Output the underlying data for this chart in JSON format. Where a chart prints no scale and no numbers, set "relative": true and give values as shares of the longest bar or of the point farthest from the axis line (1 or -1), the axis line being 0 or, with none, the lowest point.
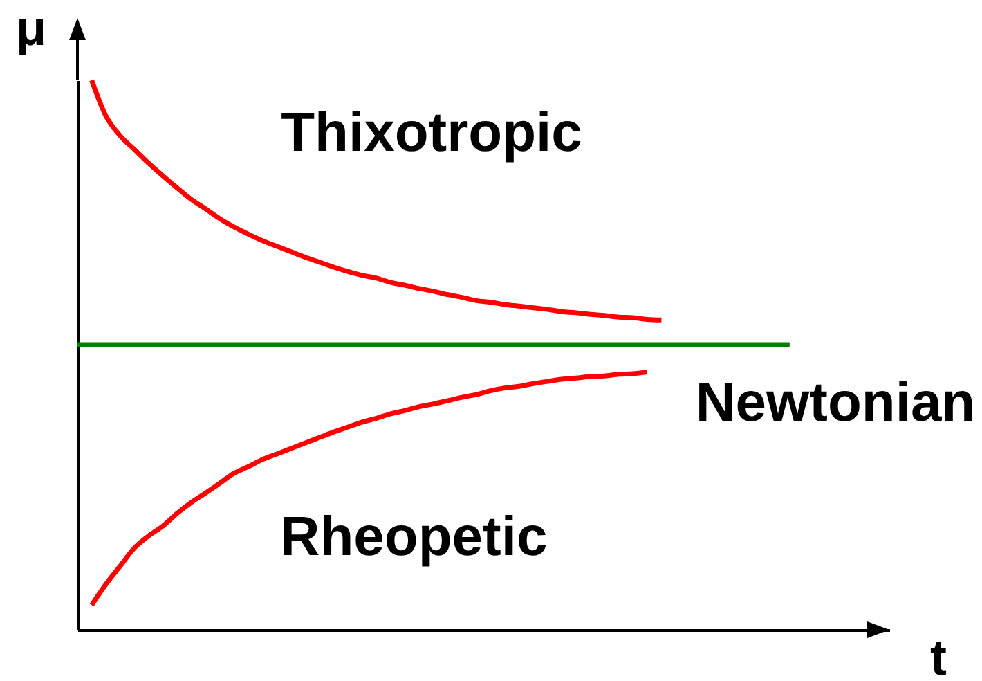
{
  "chart_data": {
    "type": "line",
    "xlabel": "t",
    "ylabel": "μ",
    "relative": true,
    "categories": [
      null,
      null,
      null,
      null,
      null,
      null,
      null,
      null,
      null,
      null,
      null,
      null,
      null,
      null,
      null,
      null,
      null,
      null,
      null,
      null,
      null,
      null,
      null,
      null,
      null,
      null,
      null,
      null,
      null,
      null,
      null,
      null,
      null,
      null,
      null,
      null,
      null,
      null,
      null,
      null,
      null,
      null,
      null,
      null,
      null,
      null,
      null,
      null,
      null,
      null,
      null,
      null,
      null,
      null,
      null,
      null,
      null,
      null
    ],
    "series": [
      {
        "name": "Thixotropic",
        "color": "#ff0000",
        "values": [
          null,
          1,
          0.935,
          0.899,
          0.874,
          0.849,
          0.826,
          0.804,
          0.783,
          0.766,
          0.748,
          0.733,
          0.72,
          0.708,
          0.698,
          0.688,
          0.678,
          0.669,
          0.66,
          0.652,
          0.645,
          0.64,
          0.632,
          0.627,
          0.621,
          0.616,
          0.61,
          0.605,
          0.599,
          0.596,
          0.592,
          0.589,
          0.586,
          0.583,
          0.579,
          0.577,
          0.574,
          0.572,
          0.569,
          0.568,
          0.565,
          0.564,
          null,
          null,
          null,
          null,
          null,
          null,
          null,
          null,
          null,
          null,
          null,
          null,
          null,
          null,
          null,
          null
        ]
      },
      {
        "name": "Newtonian",
        "color": "#008000",
        "values": [
          0.519,
          0.519,
          0.519,
          0.519,
          0.519,
          0.519,
          0.519,
          0.519,
          0.519,
          0.519,
          0.519,
          0.519,
          0.519,
          0.519,
          0.519,
          0.519,
          0.519,
          0.519,
          0.519,
          0.519,
          0.519,
          0.519,
          0.519,
          0.519,
          0.519,
          0.519,
          0.519,
          0.519,
          0.519,
          0.519,
          0.519,
          0.519,
          0.519,
          0.519,
          0.519,
          0.519,
          0.519,
          0.519,
          0.519,
          0.519,
          0.519,
          0.519,
          0.519,
          0.519,
          0.519,
          0.519,
          0.519,
          0.519,
          0.519,
          0.519,
          0.519,
          null,
          null,
          null,
          null,
          null,
          null,
          null
        ]
      },
      {
        "name": "Rheopetic",
        "color": "#ff0000",
        "values": [
          null,
          0.045,
          0.083,
          0.116,
          0.149,
          0.171,
          0.189,
          0.212,
          0.232,
          0.249,
          0.267,
          0.285,
          0.297,
          0.31,
          0.32,
          0.33,
          0.34,
          0.35,
          0.36,
          0.369,
          0.378,
          0.385,
          0.393,
          0.399,
          0.406,
          0.411,
          0.417,
          0.423,
          0.428,
          0.435,
          0.44,
          0.443,
          0.448,
          0.452,
          0.456,
          0.458,
          0.461,
          0.462,
          0.465,
          0.466,
          0.469,
          null,
          null,
          null,
          null,
          null,
          null,
          null,
          null,
          null,
          null,
          null,
          null,
          null,
          null,
          null,
          null,
          null
        ]
      }
    ]
  }
}
